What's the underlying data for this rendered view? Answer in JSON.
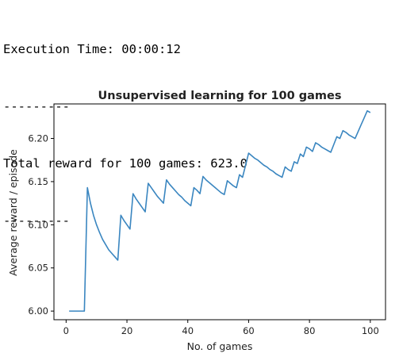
{
  "output": {
    "lines": [
      "Execution Time: 00:00:12",
      "---------",
      "Total reward for 100 games: 623.0",
      "---------"
    ]
  },
  "chart_data": {
    "type": "line",
    "title": "Unsupervised learning for 100 games",
    "xlabel": "No. of games",
    "ylabel": "Average reward / episode",
    "xlim": [
      -4,
      105
    ],
    "ylim": [
      5.99,
      6.24
    ],
    "xticks": [
      0,
      20,
      40,
      60,
      80,
      100
    ],
    "xtick_labels": [
      "0",
      "20",
      "40",
      "60",
      "80",
      "100"
    ],
    "yticks": [
      6.0,
      6.05,
      6.1,
      6.15,
      6.2
    ],
    "ytick_labels": [
      "6.00",
      "6.05",
      "6.10",
      "6.15",
      "6.20"
    ],
    "grid": false,
    "line_color": "#3a86c0",
    "series": [
      {
        "name": "",
        "x": [
          1,
          2,
          3,
          4,
          5,
          6,
          7,
          8,
          9,
          10,
          11,
          12,
          13,
          14,
          15,
          16,
          17,
          18,
          19,
          20,
          21,
          22,
          23,
          24,
          25,
          26,
          27,
          28,
          29,
          30,
          31,
          32,
          33,
          34,
          35,
          36,
          37,
          38,
          39,
          40,
          41,
          42,
          43,
          44,
          45,
          46,
          47,
          48,
          49,
          50,
          51,
          52,
          53,
          54,
          55,
          56,
          57,
          58,
          59,
          60,
          61,
          62,
          63,
          64,
          65,
          66,
          67,
          68,
          69,
          70,
          71,
          72,
          73,
          74,
          75,
          76,
          77,
          78,
          79,
          80,
          81,
          82,
          83,
          84,
          85,
          86,
          87,
          88,
          89,
          90,
          91,
          92,
          93,
          94,
          95,
          96,
          97,
          98,
          99,
          100
        ],
        "values": [
          6.0,
          6.0,
          6.0,
          6.0,
          6.0,
          6.0,
          6.143,
          6.125,
          6.111,
          6.1,
          6.091,
          6.083,
          6.077,
          6.071,
          6.067,
          6.063,
          6.059,
          6.111,
          6.105,
          6.1,
          6.095,
          6.136,
          6.13,
          6.125,
          6.12,
          6.115,
          6.148,
          6.143,
          6.138,
          6.133,
          6.129,
          6.125,
          6.152,
          6.147,
          6.143,
          6.139,
          6.135,
          6.132,
          6.128,
          6.125,
          6.122,
          6.143,
          6.14,
          6.136,
          6.156,
          6.152,
          6.149,
          6.146,
          6.143,
          6.14,
          6.137,
          6.135,
          6.151,
          6.148,
          6.145,
          6.143,
          6.158,
          6.155,
          6.169,
          6.183,
          6.18,
          6.177,
          6.175,
          6.172,
          6.169,
          6.167,
          6.164,
          6.162,
          6.159,
          6.157,
          6.155,
          6.167,
          6.164,
          6.162,
          6.173,
          6.171,
          6.182,
          6.179,
          6.19,
          6.188,
          6.185,
          6.195,
          6.193,
          6.19,
          6.188,
          6.186,
          6.184,
          6.193,
          6.202,
          6.2,
          6.209,
          6.207,
          6.204,
          6.202,
          6.2,
          6.208,
          6.216,
          6.224,
          6.232,
          6.23
        ]
      }
    ]
  }
}
